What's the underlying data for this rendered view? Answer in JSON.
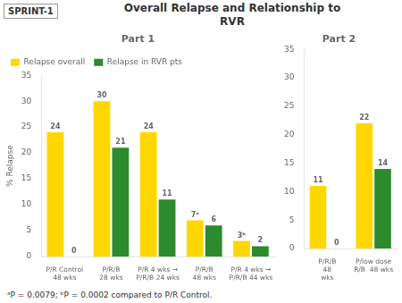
{
  "title": "Overall Relapse and Relationship to\nRVR",
  "annotations": [
    "SPRINT-1",
    "ᵃP = 0.0079; ᵇP = 0.0002 compared to P/R Control."
  ],
  "chart_data": [
    {
      "type": "bar",
      "title": "Part 1",
      "ylabel": "% Relapse",
      "categories": [
        "P/R Control\n48 wks",
        "P/R/B\n28 wks",
        "P/R 4 wks →\nP/R/B 24 wks",
        "P/R/B\n48 wks",
        "P/R 4 wks →\nP/R/B 44 wks"
      ],
      "series": [
        {
          "name": "Relapse overall",
          "color": "#FFD700",
          "values": [
            24,
            30,
            24,
            7,
            3
          ],
          "value_labels": [
            "24",
            "30",
            "24",
            "7ᵃ",
            "3ᵇ"
          ]
        },
        {
          "name": "Relapse in RVR pts",
          "color": "#2d8a2d",
          "values": [
            0,
            21,
            11,
            6,
            2
          ]
        }
      ],
      "ylim": [
        0,
        35
      ],
      "yticks": [
        0,
        5,
        10,
        15,
        20,
        25,
        30,
        35
      ],
      "grid": false,
      "legend": "upper left",
      "data_labels": true
    },
    {
      "type": "bar",
      "title": "Part 2",
      "categories": [
        "P/R/B\n48\nwks",
        "P/low dose\nR/B  48 wks"
      ],
      "series": [
        {
          "name": "Relapse overall",
          "color": "#FFD700",
          "values": [
            11,
            22
          ]
        },
        {
          "name": "Relapse in RVR pts",
          "color": "#2d8a2d",
          "values": [
            0,
            14
          ]
        }
      ],
      "ylim": [
        0,
        35
      ],
      "yticks": [
        0,
        5,
        10,
        15,
        20,
        25,
        30,
        35
      ],
      "grid": false,
      "data_labels": true
    }
  ]
}
